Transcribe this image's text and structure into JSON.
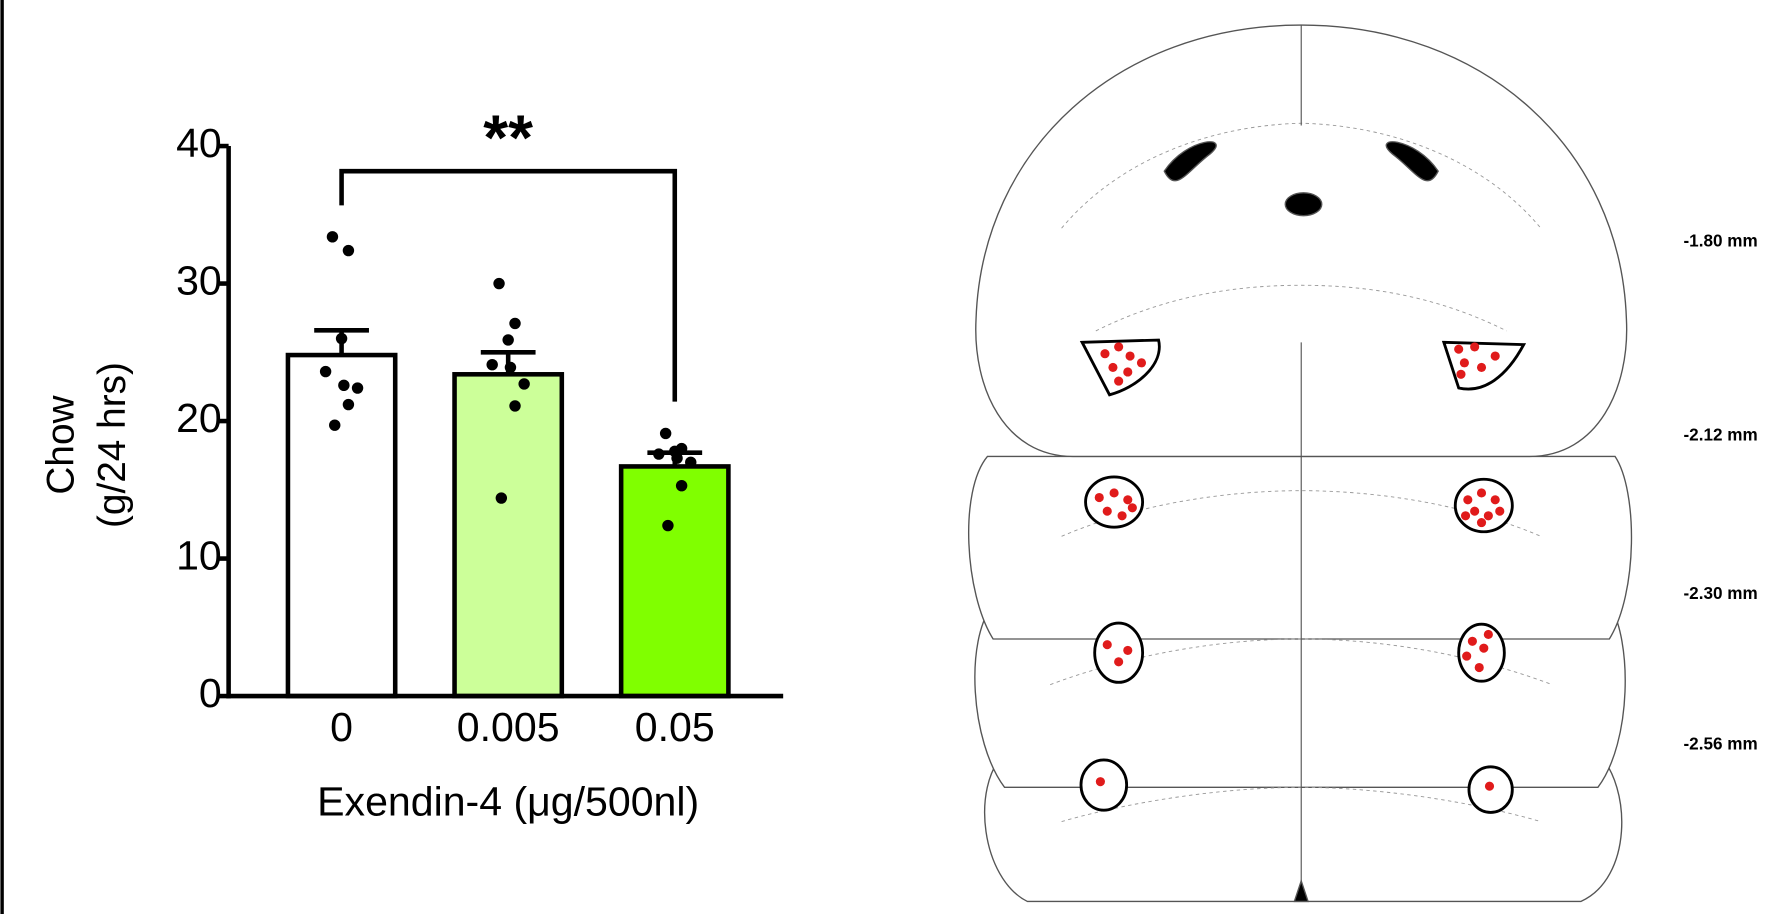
{
  "chart_data": {
    "type": "bar",
    "categories": [
      "0",
      "0.005",
      "0.05"
    ],
    "values": [
      24.8,
      23.4,
      16.7
    ],
    "errors": [
      1.8,
      1.6,
      1.0
    ],
    "colors": [
      "#ffffff",
      "#ccff99",
      "#80ff00"
    ],
    "points": [
      [
        33.4,
        32.4,
        26.0,
        23.6,
        22.6,
        22.4,
        21.2,
        19.7
      ],
      [
        30.0,
        27.1,
        25.9,
        24.1,
        23.9,
        22.7,
        21.1,
        14.4
      ],
      [
        19.1,
        18.0,
        17.8,
        17.6,
        17.3,
        17.0,
        15.3,
        12.4
      ]
    ],
    "ylim": [
      0,
      40
    ],
    "yticks": [
      0,
      10,
      20,
      30,
      40
    ],
    "ylabel": [
      "Chow",
      "(g/24 hrs)"
    ],
    "xlabel": "Exendin-4 (μg/500nl)",
    "significance": "**"
  },
  "atlas": {
    "levels": [
      "-1.80 mm",
      "-2.12 mm",
      "-2.30 mm",
      "-2.56 mm"
    ]
  }
}
